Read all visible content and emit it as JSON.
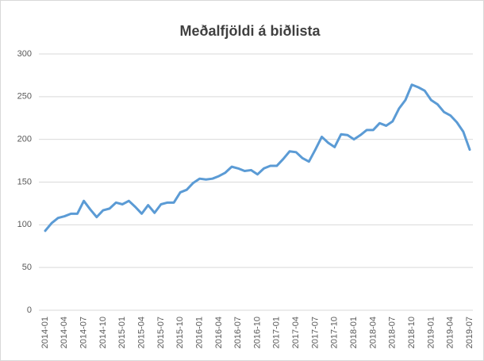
{
  "chart_data": {
    "type": "line",
    "title": "Meðalfjöldi á biðlista",
    "categories": [
      "2014-01",
      null,
      null,
      "2014-04",
      null,
      null,
      "2014-07",
      null,
      null,
      "2014-10",
      null,
      null,
      "2015-01",
      null,
      null,
      "2015-04",
      null,
      null,
      "2015-07",
      null,
      null,
      "2015-10",
      null,
      null,
      "2016-01",
      null,
      null,
      "2016-04",
      null,
      null,
      "2016-07",
      null,
      null,
      "2016-10",
      null,
      null,
      "2017-01",
      null,
      null,
      "2017-04",
      null,
      null,
      "2017-07",
      null,
      null,
      "2017-10",
      null,
      null,
      "2018-01",
      null,
      null,
      "2018-04",
      null,
      null,
      "2018-07",
      null,
      null,
      "2018-10",
      null,
      null,
      "2019-01",
      null,
      null,
      "2019-04",
      null,
      null,
      "2019-07"
    ],
    "values": [
      93,
      102,
      108,
      110,
      113,
      113,
      128,
      118,
      109,
      117,
      119,
      126,
      124,
      128,
      121,
      113,
      123,
      114,
      124,
      126,
      126,
      138,
      141,
      149,
      154,
      153,
      154,
      157,
      161,
      168,
      166,
      163,
      164,
      159,
      166,
      169,
      169,
      177,
      186,
      185,
      178,
      174,
      188,
      203,
      196,
      191,
      206,
      205,
      200,
      205,
      211,
      211,
      219,
      216,
      221,
      236,
      246,
      264,
      261,
      257,
      246,
      241,
      232,
      228,
      220,
      209,
      188
    ],
    "color": "#5b9bd5",
    "ylim": [
      0,
      300
    ],
    "yticks": [
      0,
      50,
      100,
      150,
      200,
      250,
      300
    ],
    "grid": true
  }
}
